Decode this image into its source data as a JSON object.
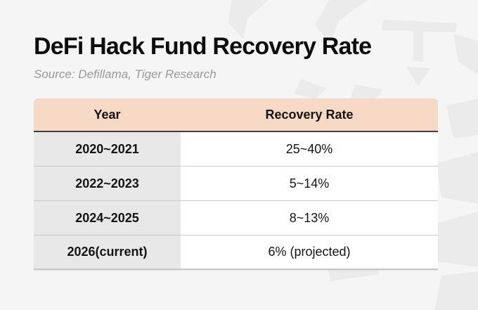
{
  "header": {
    "title": "DeFi Hack Fund Recovery Rate",
    "source": "Source: Defillama, Tiger Research"
  },
  "table": {
    "columns": [
      "Year",
      "Recovery Rate"
    ],
    "rows": [
      {
        "year": "2020~2021",
        "rate": "25~40%"
      },
      {
        "year": "2022~2023",
        "rate": "5~14%"
      },
      {
        "year": "2024~2025",
        "rate": "8~13%"
      },
      {
        "year": "2026(current)",
        "rate": "6% (projected)"
      }
    ]
  },
  "icons": {
    "watermark": "tiger-logo-watermark"
  },
  "colors": {
    "page_background": "#f6f5f6",
    "header_row_background": "#f6dac6",
    "year_column_background": "#e9e8e9",
    "header_bottom_border": "#3e3e3e",
    "row_divider": "#cacaca",
    "title_text": "#0d0d0d",
    "source_text": "#999897",
    "cell_text": "#141414",
    "watermark": "#ebebec"
  },
  "chart_data": {
    "type": "table",
    "title": "DeFi Hack Fund Recovery Rate",
    "source": "Source: Defillama, Tiger Research",
    "columns": [
      "Year",
      "Recovery Rate"
    ],
    "rows": [
      [
        "2020~2021",
        "25~40%"
      ],
      [
        "2022~2023",
        "5~14%"
      ],
      [
        "2024~2025",
        "8~13%"
      ],
      [
        "2026(current)",
        "6% (projected)"
      ]
    ]
  }
}
